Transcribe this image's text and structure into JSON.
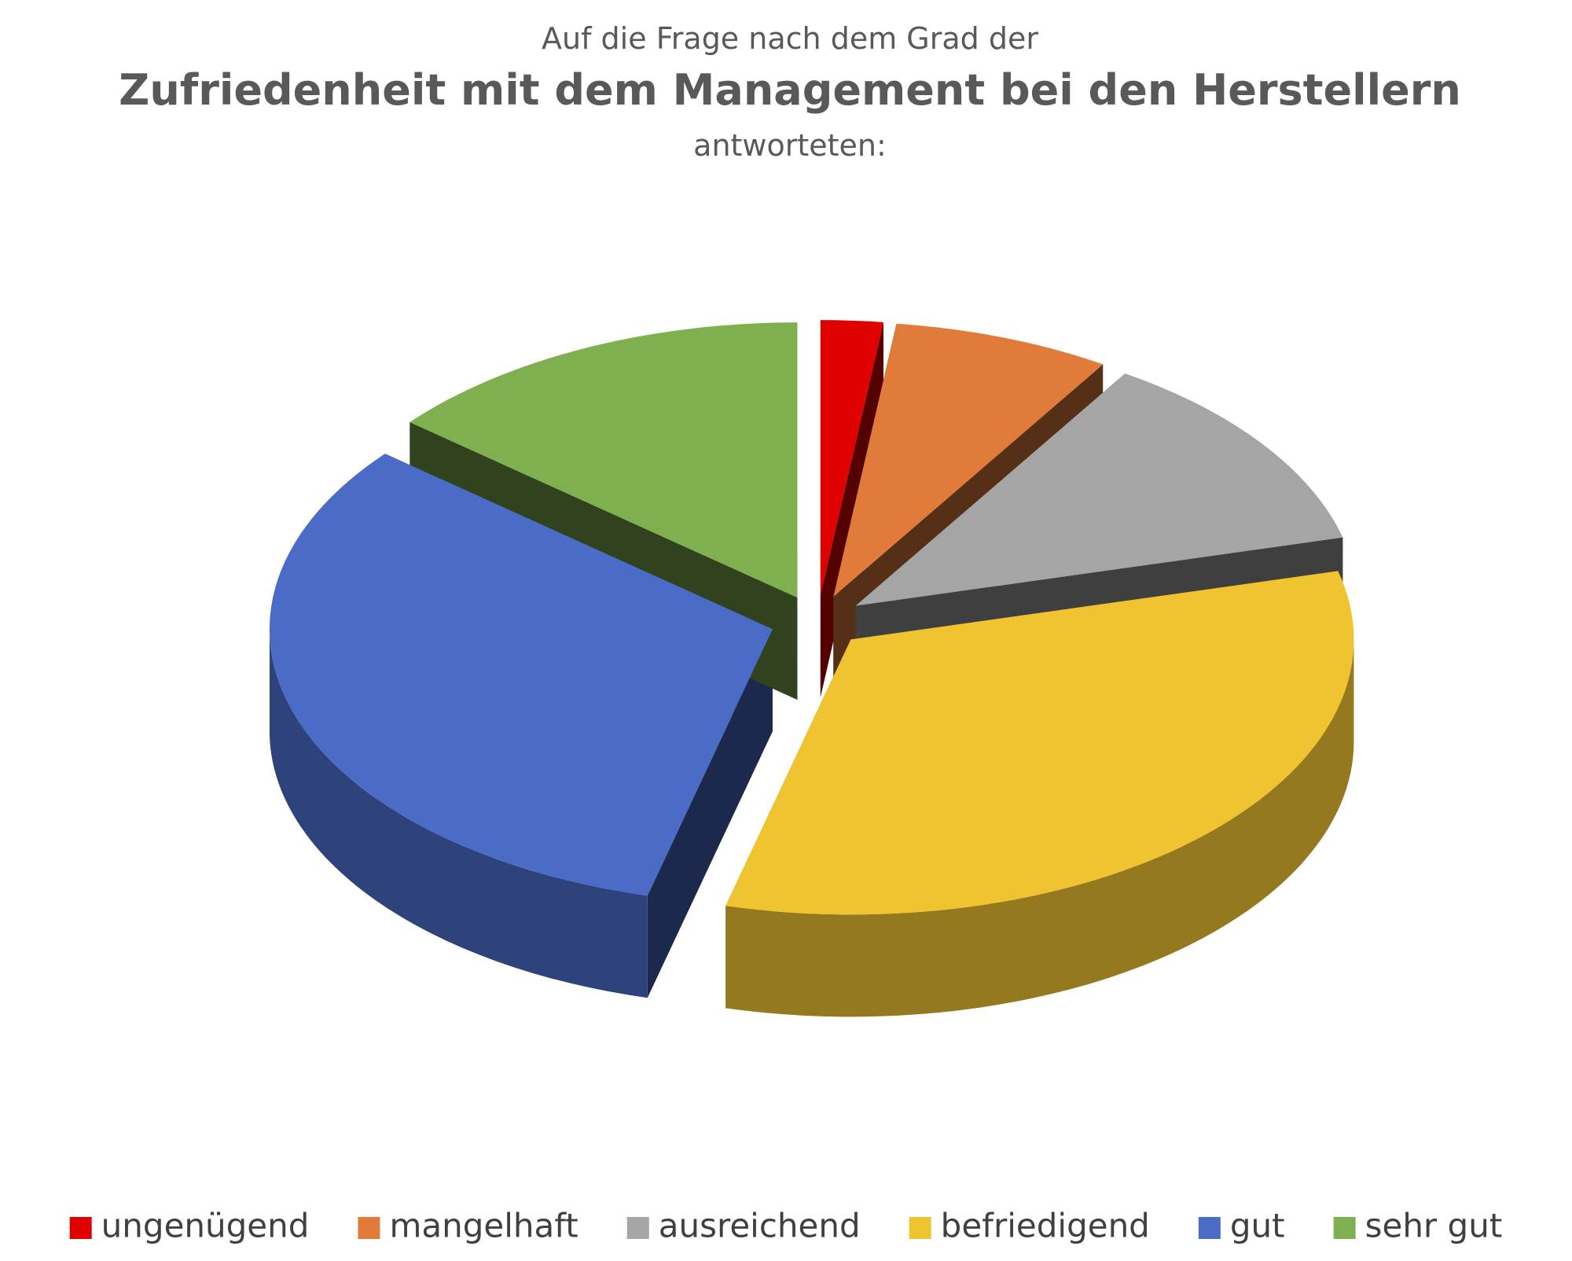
{
  "chart_data": {
    "type": "pie",
    "title_prefix": "Auf die Frage nach dem Grad der",
    "title": "Zufriedenheit mit dem Management bei den Herstellern",
    "title_suffix": "antworteten:",
    "categories": [
      "ungenügend",
      "mangelhaft",
      "ausreichend",
      "befriedigend",
      "gut",
      "sehr gut"
    ],
    "values": [
      2,
      7,
      12,
      33,
      32,
      14
    ],
    "colors": [
      "#e00000",
      "#e07b39",
      "#a5a5a5",
      "#f0c330",
      "#4a6cc7",
      "#7fb04f"
    ],
    "legend": "bottom"
  }
}
